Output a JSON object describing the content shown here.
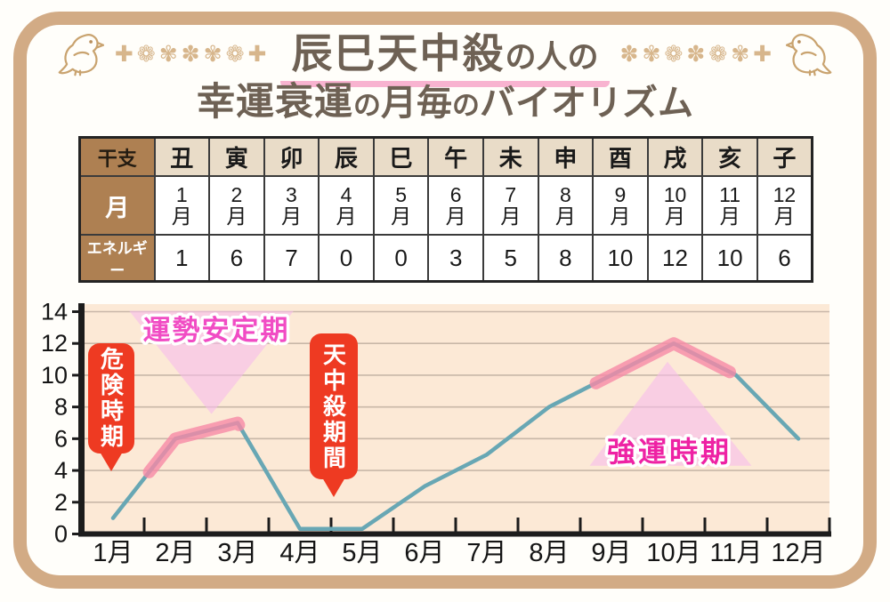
{
  "header": {
    "title_main": "辰巳天中殺",
    "title_main_suffix": "の人の",
    "title2_part1": "幸運衰運",
    "title2_no1": "の",
    "title2_part2": "月毎",
    "title2_no2": "の",
    "title2_part3": "バイオリズム",
    "ornament_left": "✚❁✾✽✾❁✚",
    "ornament_right": "✽✾❁✽❁✾✚"
  },
  "table": {
    "row1_header": "干支",
    "zodiac": [
      "丑",
      "寅",
      "卯",
      "辰",
      "巳",
      "午",
      "未",
      "申",
      "酉",
      "戌",
      "亥",
      "子"
    ],
    "row2_header": "月",
    "months": [
      "1",
      "2",
      "3",
      "4",
      "5",
      "6",
      "7",
      "8",
      "9",
      "10",
      "11",
      "12"
    ],
    "month_suffix": "月",
    "row3_header": "エネルギー",
    "energy": [
      "1",
      "6",
      "7",
      "0",
      "0",
      "3",
      "5",
      "8",
      "10",
      "12",
      "10",
      "6"
    ]
  },
  "chart_data": {
    "type": "line",
    "title": "辰巳天中殺の人の幸運衰運の月毎のバイオリズム",
    "categories": [
      "1月",
      "2月",
      "3月",
      "4月",
      "5月",
      "6月",
      "7月",
      "8月",
      "9月",
      "10月",
      "11月",
      "12月"
    ],
    "values": [
      1,
      6,
      7,
      0,
      0,
      3,
      5,
      8,
      10,
      12,
      10,
      6
    ],
    "xlabel": "",
    "ylabel": "",
    "ylim": [
      0,
      14
    ],
    "y_ticks": [
      0,
      2,
      4,
      6,
      8,
      10,
      12,
      14
    ],
    "grid": true,
    "legend": false,
    "highlight_segments_months": [
      [
        1.58,
        3.02
      ],
      [
        8.75,
        10.9
      ]
    ],
    "annotations": {
      "stable": {
        "label": "運勢安定期",
        "shape": "triangle-down",
        "triangle_mv": [
          [
            1.26,
            14.05
          ],
          [
            3.9,
            14.05
          ],
          [
            2.58,
            7.55
          ]
        ]
      },
      "strong": {
        "label": "強運時期",
        "shape": "triangle-up",
        "triangle_mv": [
          [
            9.9,
            10.85
          ],
          [
            8.65,
            4.3
          ],
          [
            11.25,
            4.3
          ]
        ]
      },
      "danger": {
        "label": "危険時期",
        "shape": "red-bubble-down-arrow",
        "points_at_month": 1
      },
      "tenchusatsu": {
        "label": "天中殺期間",
        "shape": "red-bubble-down-arrow",
        "points_at_month": 4.5
      }
    }
  },
  "colors": {
    "frame_border": "#d2ab85",
    "title_text": "#6e6154",
    "ornament": "#d7b68c",
    "underline_pink": "#f8b3d0",
    "table_header_brown": "#ae8052",
    "zodiac_cell_beige": "#e9dcc8",
    "plot_background": "#fce9d6",
    "gridline": "#c8b7a8",
    "axis": "#1c1c1c",
    "line_teal": "#68a7b4",
    "highlight_pink": "#f68aa6",
    "triangle_fill": "#f7bdeb",
    "bubble_red": "#ee3a22",
    "stable_label_pink": "#f14cc4",
    "strong_label_magenta": "#ee22a4"
  }
}
